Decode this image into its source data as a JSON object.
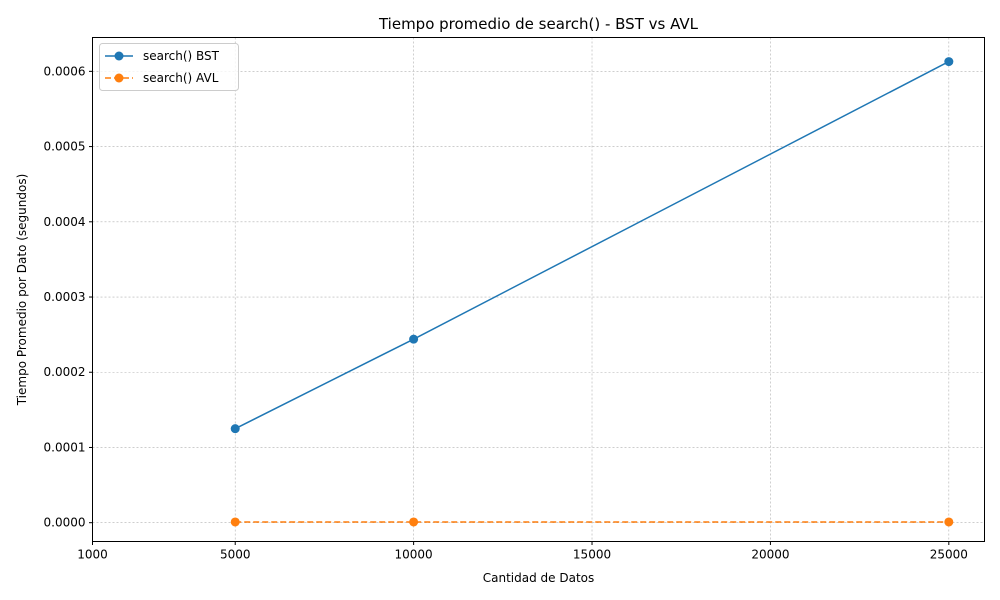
{
  "chart_data": {
    "type": "line",
    "title": "Tiempo promedio de search() - BST vs AVL",
    "xlabel": "Cantidad de Datos",
    "ylabel": "Tiempo Promedio por Dato (segundos)",
    "x": [
      5000,
      10000,
      25000
    ],
    "xlim": [
      1000,
      26000
    ],
    "ylim": [
      -2.5e-05,
      0.000645
    ],
    "xticks": [
      1000,
      5000,
      10000,
      15000,
      20000,
      25000
    ],
    "xtick_labels": [
      "1000",
      "5000",
      "10000",
      "15000",
      "20000",
      "25000"
    ],
    "yticks": [
      0,
      0.0001,
      0.0002,
      0.0003,
      0.0004,
      0.0005,
      0.0006
    ],
    "ytick_labels": [
      "0.0000",
      "0.0001",
      "0.0002",
      "0.0003",
      "0.0004",
      "0.0005",
      "0.0006"
    ],
    "grid": true,
    "legend_position": "top-left",
    "series": [
      {
        "name": "search() BST",
        "values": [
          0.000125,
          0.000244,
          0.000613
        ],
        "color": "#1f77b4",
        "linestyle": "solid",
        "marker": "circle"
      },
      {
        "name": "search() AVL",
        "values": [
          1e-06,
          1e-06,
          1e-06
        ],
        "color": "#ff7f0e",
        "linestyle": "dashed",
        "marker": "circle"
      }
    ]
  }
}
